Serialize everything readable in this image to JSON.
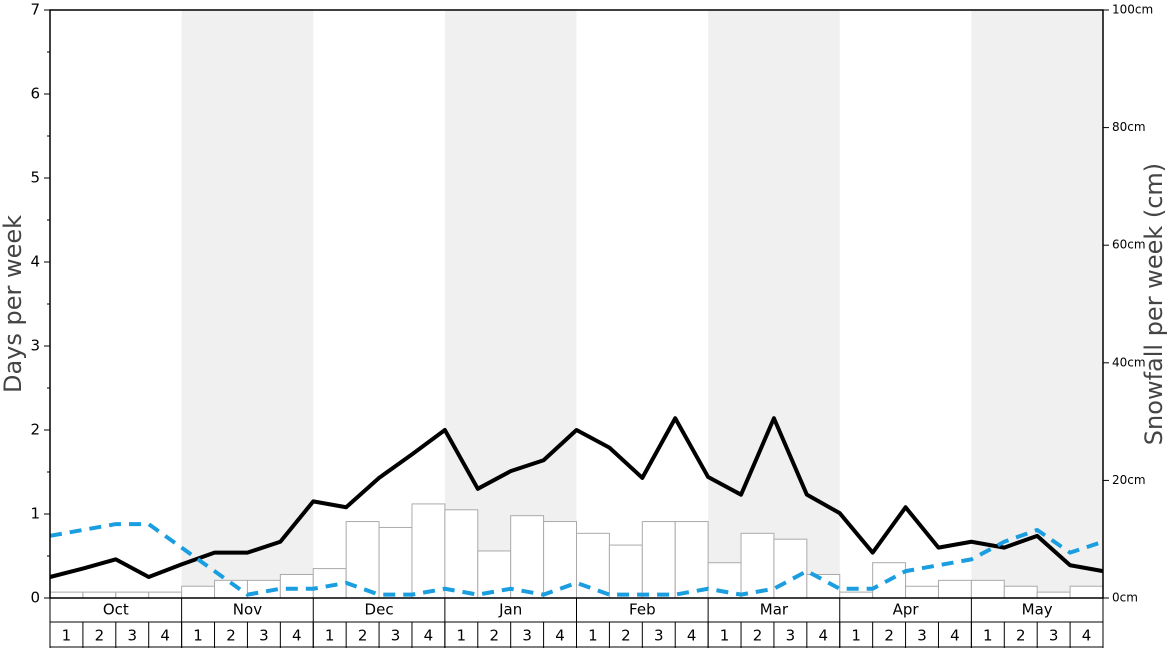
{
  "chart_data": {
    "type": "bar_line",
    "ylabel": "Days per week",
    "y2label": "Snowfall per week (cm)",
    "ylim": [
      0,
      7
    ],
    "yticks": [
      0,
      1,
      2,
      3,
      4,
      5,
      6,
      7
    ],
    "y2lim": [
      0,
      100
    ],
    "y2ticks": [
      {
        "value": 0,
        "label": "0cm"
      },
      {
        "value": 20,
        "label": "20cm"
      },
      {
        "value": 40,
        "label": "40cm"
      },
      {
        "value": 60,
        "label": "60cm"
      },
      {
        "value": 80,
        "label": "80cm"
      },
      {
        "value": 100,
        "label": "100cm"
      }
    ],
    "months": [
      "Oct",
      "Nov",
      "Dec",
      "Jan",
      "Feb",
      "Mar",
      "Apr",
      "May"
    ],
    "categories": [
      "1",
      "2",
      "3",
      "4",
      "1",
      "2",
      "3",
      "4",
      "1",
      "2",
      "3",
      "4",
      "1",
      "2",
      "3",
      "4",
      "1",
      "2",
      "3",
      "4",
      "1",
      "2",
      "3",
      "4",
      "1",
      "2",
      "3",
      "4",
      "1",
      "2",
      "3",
      "4"
    ],
    "bars": {
      "axis": "y2",
      "color": "#ffffff",
      "edgecolor": "#aaaaaa",
      "values": [
        1,
        1,
        1,
        1,
        2,
        3,
        3,
        4,
        5,
        13,
        12,
        16,
        15,
        8,
        14,
        13,
        11,
        9,
        13,
        13,
        6,
        11,
        10,
        4,
        1,
        6,
        2,
        3,
        3,
        2,
        1,
        2
      ]
    },
    "xlim": [
      0,
      32
    ],
    "x": [
      0,
      1,
      2,
      3,
      4,
      5,
      6,
      7,
      8,
      9,
      10,
      11,
      12,
      13,
      14,
      15,
      16,
      17,
      18,
      19,
      20,
      21,
      22,
      23,
      24,
      25,
      26,
      27,
      28,
      29,
      30,
      31,
      32
    ],
    "series": [
      {
        "color": "#000000",
        "dashed": false,
        "values": [
          0.25,
          0.35,
          0.46,
          0.25,
          0.4,
          0.54,
          0.54,
          0.67,
          1.15,
          1.08,
          1.43,
          1.71,
          2.0,
          1.3,
          1.51,
          1.64,
          2.0,
          1.79,
          1.43,
          2.14,
          1.44,
          1.23,
          2.14,
          1.23,
          1.01,
          0.54,
          1.08,
          0.6,
          0.67,
          0.6,
          0.74,
          0.39,
          0.32
        ]
      },
      {
        "color": "#1a9ee0",
        "dashed": true,
        "values": [
          0.74,
          0.81,
          0.88,
          0.88,
          0.6,
          0.32,
          0.04,
          0.11,
          0.11,
          0.18,
          0.04,
          0.04,
          0.11,
          0.04,
          0.11,
          0.04,
          0.18,
          0.04,
          0.04,
          0.04,
          0.11,
          0.04,
          0.11,
          0.32,
          0.11,
          0.11,
          0.32,
          0.39,
          0.46,
          0.67,
          0.81,
          0.54,
          0.67
        ]
      }
    ]
  }
}
